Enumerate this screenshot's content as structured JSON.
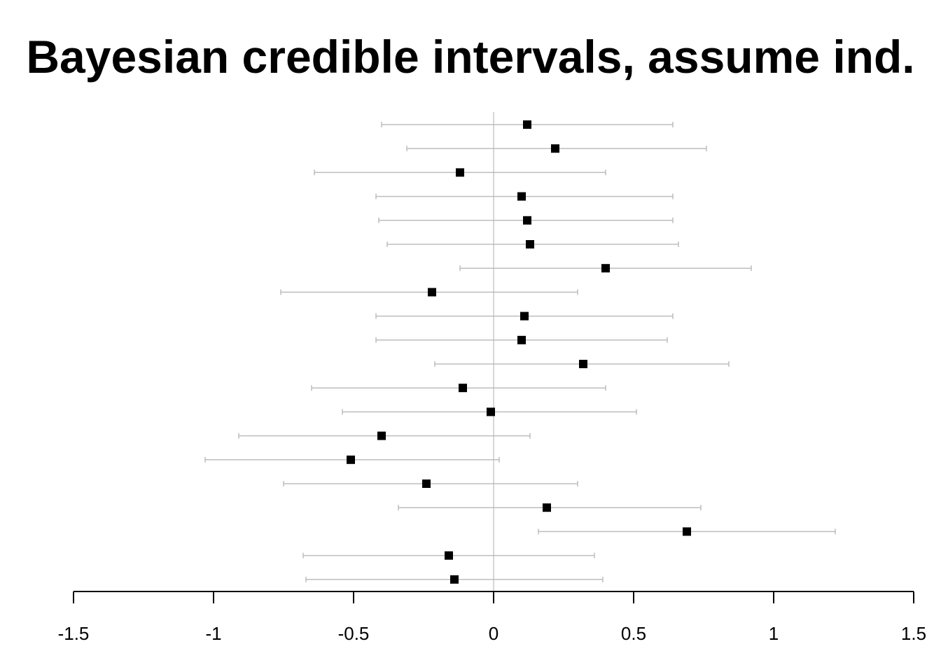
{
  "chart_data": {
    "type": "scatter",
    "subtype": "interval-forest",
    "title": "Bayesian credible intervals, assume ind.",
    "xlabel": "",
    "ylabel": "",
    "xlim": [
      -1.5,
      1.5
    ],
    "x_ticks": [
      -1.5,
      -1,
      -0.5,
      0,
      0.5,
      1,
      1.5
    ],
    "x_tick_labels": [
      "-1.5",
      "-1",
      "-0.5",
      "0",
      "0.5",
      "1",
      "1.5"
    ],
    "reference_line_x": 0,
    "grid": false,
    "legend": "none",
    "colors": {
      "point": "#000000",
      "interval": "#bdbdbd",
      "reference": "#c8c8c8",
      "axis": "#000000"
    },
    "intervals": [
      {
        "estimate": 0.12,
        "lower": -0.4,
        "upper": 0.64
      },
      {
        "estimate": 0.22,
        "lower": -0.31,
        "upper": 0.76
      },
      {
        "estimate": -0.12,
        "lower": -0.64,
        "upper": 0.4
      },
      {
        "estimate": 0.1,
        "lower": -0.42,
        "upper": 0.64
      },
      {
        "estimate": 0.12,
        "lower": -0.41,
        "upper": 0.64
      },
      {
        "estimate": 0.13,
        "lower": -0.38,
        "upper": 0.66
      },
      {
        "estimate": 0.4,
        "lower": -0.12,
        "upper": 0.92
      },
      {
        "estimate": -0.22,
        "lower": -0.76,
        "upper": 0.3
      },
      {
        "estimate": 0.11,
        "lower": -0.42,
        "upper": 0.64
      },
      {
        "estimate": 0.1,
        "lower": -0.42,
        "upper": 0.62
      },
      {
        "estimate": 0.32,
        "lower": -0.21,
        "upper": 0.84
      },
      {
        "estimate": -0.11,
        "lower": -0.65,
        "upper": 0.4
      },
      {
        "estimate": -0.01,
        "lower": -0.54,
        "upper": 0.51
      },
      {
        "estimate": -0.4,
        "lower": -0.91,
        "upper": 0.13
      },
      {
        "estimate": -0.51,
        "lower": -1.03,
        "upper": 0.02
      },
      {
        "estimate": -0.24,
        "lower": -0.75,
        "upper": 0.3
      },
      {
        "estimate": 0.19,
        "lower": -0.34,
        "upper": 0.74
      },
      {
        "estimate": 0.69,
        "lower": 0.16,
        "upper": 1.22
      },
      {
        "estimate": -0.16,
        "lower": -0.68,
        "upper": 0.36
      },
      {
        "estimate": -0.14,
        "lower": -0.67,
        "upper": 0.39
      }
    ]
  }
}
